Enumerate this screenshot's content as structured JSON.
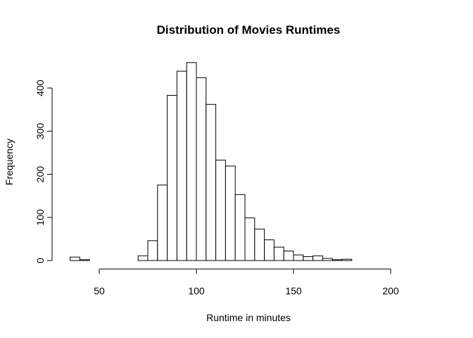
{
  "chart_data": {
    "type": "bar",
    "title": "Distribution of Movies Runtimes",
    "xlabel": "Runtime in minutes",
    "ylabel": "Frequency",
    "xlim": [
      35,
      220
    ],
    "ylim": [
      0,
      460
    ],
    "bin_width": 5,
    "bins": [
      {
        "start": 35,
        "end": 40,
        "count": 8
      },
      {
        "start": 40,
        "end": 45,
        "count": 2
      },
      {
        "start": 45,
        "end": 50,
        "count": 0
      },
      {
        "start": 50,
        "end": 55,
        "count": 0
      },
      {
        "start": 55,
        "end": 60,
        "count": 0
      },
      {
        "start": 60,
        "end": 65,
        "count": 0
      },
      {
        "start": 65,
        "end": 70,
        "count": 0
      },
      {
        "start": 70,
        "end": 75,
        "count": 11
      },
      {
        "start": 75,
        "end": 80,
        "count": 46
      },
      {
        "start": 80,
        "end": 85,
        "count": 175
      },
      {
        "start": 85,
        "end": 90,
        "count": 383
      },
      {
        "start": 90,
        "end": 95,
        "count": 439
      },
      {
        "start": 95,
        "end": 100,
        "count": 459
      },
      {
        "start": 100,
        "end": 105,
        "count": 424
      },
      {
        "start": 105,
        "end": 110,
        "count": 362
      },
      {
        "start": 110,
        "end": 115,
        "count": 233
      },
      {
        "start": 115,
        "end": 120,
        "count": 219
      },
      {
        "start": 120,
        "end": 125,
        "count": 153
      },
      {
        "start": 125,
        "end": 130,
        "count": 99
      },
      {
        "start": 130,
        "end": 135,
        "count": 73
      },
      {
        "start": 135,
        "end": 140,
        "count": 48
      },
      {
        "start": 140,
        "end": 145,
        "count": 31
      },
      {
        "start": 145,
        "end": 150,
        "count": 22
      },
      {
        "start": 150,
        "end": 155,
        "count": 13
      },
      {
        "start": 155,
        "end": 160,
        "count": 9
      },
      {
        "start": 160,
        "end": 165,
        "count": 11
      },
      {
        "start": 165,
        "end": 170,
        "count": 5
      },
      {
        "start": 170,
        "end": 175,
        "count": 2
      },
      {
        "start": 175,
        "end": 180,
        "count": 3
      },
      {
        "start": 180,
        "end": 185,
        "count": 0
      },
      {
        "start": 185,
        "end": 190,
        "count": 0
      },
      {
        "start": 190,
        "end": 195,
        "count": 0
      },
      {
        "start": 195,
        "end": 200,
        "count": 0
      },
      {
        "start": 200,
        "end": 205,
        "count": 0
      },
      {
        "start": 205,
        "end": 210,
        "count": 0
      },
      {
        "start": 210,
        "end": 215,
        "count": 0
      },
      {
        "start": 215,
        "end": 220,
        "count": 0
      }
    ],
    "x_ticks": [
      {
        "value": 50,
        "label": "50"
      },
      {
        "value": 100,
        "label": "100"
      },
      {
        "value": 150,
        "label": "150"
      },
      {
        "value": 200,
        "label": "200"
      }
    ],
    "y_ticks": [
      {
        "value": 0,
        "label": "0"
      },
      {
        "value": 100,
        "label": "100"
      },
      {
        "value": 200,
        "label": "200"
      },
      {
        "value": 300,
        "label": "300"
      },
      {
        "value": 400,
        "label": "400"
      }
    ],
    "x_axis_range": [
      50,
      200
    ],
    "y_axis_range": [
      0,
      400
    ],
    "grid": false,
    "legend": "none",
    "colors": {
      "bar_fill": "#ffffff",
      "bar_stroke": "#000000"
    }
  }
}
